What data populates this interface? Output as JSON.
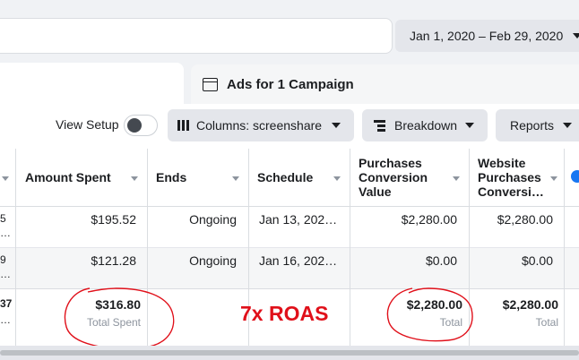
{
  "date_range": {
    "label": "Jan 1, 2020 – Feb 29, 2020"
  },
  "panel": {
    "title": "Ads for 1 Campaign"
  },
  "toolbar": {
    "view_setup": "View Setup",
    "columns": "Columns: screenshare",
    "breakdown": "Breakdown",
    "reports": "Reports"
  },
  "table": {
    "headers": {
      "amount_spent": "Amount Spent",
      "ends": "Ends",
      "schedule": "Schedule",
      "purchases_value": [
        "Purchases",
        "Conversion",
        "Value"
      ],
      "website_purchases": [
        "Website",
        "Purchases",
        "Conversi…"
      ]
    },
    "rows": [
      {
        "left_fragment": [
          "5",
          "…"
        ],
        "amount_spent": "$195.52",
        "ends": "Ongoing",
        "schedule": "Jan 13, 202…",
        "purchases_value": "$2,280.00",
        "website_purchases": "$2,280.00"
      },
      {
        "left_fragment": [
          "9",
          "…"
        ],
        "amount_spent": "$121.28",
        "ends": "Ongoing",
        "schedule": "Jan 16, 202…",
        "purchases_value": "$0.00",
        "website_purchases": "$0.00"
      }
    ],
    "totals": {
      "left_fragment": [
        "37",
        "…"
      ],
      "amount_spent": "$316.80",
      "amount_spent_sub": "Total Spent",
      "purchases_value": "$2,280.00",
      "purchases_value_sub": "Total",
      "website_purchases": "$2,280.00",
      "website_purchases_sub": "Total"
    }
  },
  "annotation": {
    "text": "7x ROAS",
    "color": "#e0101a"
  },
  "colors": {
    "accent": "#1877f2",
    "annotation_red": "#e0101a"
  }
}
